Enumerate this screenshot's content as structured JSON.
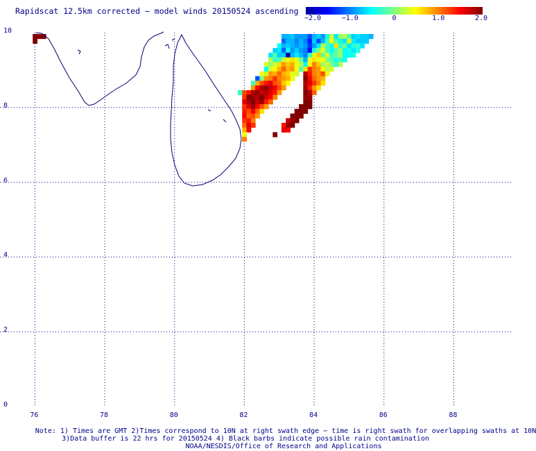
{
  "title": "Rapidscat 12.5km corrected − model winds 20150524 ascending",
  "colorbar": {
    "min": -2.0,
    "max": 2.0,
    "tick_labels": [
      "−2.0",
      "−1.0",
      "0",
      "1.0",
      "2.0"
    ],
    "tick_values": [
      -2.0,
      -1.0,
      0,
      1.0,
      2.0
    ]
  },
  "axes": {
    "x_ticks": [
      "76",
      "78",
      "80",
      "82",
      "84",
      "86",
      "88"
    ],
    "x_values": [
      76,
      78,
      80,
      82,
      84,
      86,
      88
    ],
    "y_ticks": [
      "10",
      "8",
      "6",
      "4",
      "2",
      "0"
    ],
    "y_values": [
      10,
      8,
      6,
      4,
      2,
      0
    ],
    "lon_range": [
      75.0,
      89.7
    ],
    "lat_range": [
      0,
      10
    ],
    "grid": true
  },
  "notes": {
    "line1": "Note: 1) Times are GMT 2)Times correspond to 10N at right swath edge − time is right swath for overlapping swaths at 10N",
    "line2": "3)Data buffer is 22 hrs for 20150524 4) Black barbs indicate possible rain contamination",
    "line3": "NOAA/NESDIS/Office of Research and Applications"
  },
  "chart_data": {
    "type": "heatmap",
    "title": "Rapidscat 12.5km corrected − model winds 20150524 ascending",
    "xlabel": "",
    "ylabel": "",
    "xlim": [
      75.0,
      89.7
    ],
    "ylim": [
      0,
      10
    ],
    "cell_size_deg": 0.125,
    "legend": "top-right colorbar",
    "cells": [
      [
        76.0,
        9.9,
        2.0
      ],
      [
        76.125,
        9.9,
        2.0
      ],
      [
        76.25,
        9.9,
        2.0
      ],
      [
        76.0,
        9.775,
        2.0
      ],
      [
        83.125,
        9.9,
        -0.8
      ],
      [
        83.25,
        9.9,
        -0.8
      ],
      [
        83.375,
        9.9,
        -0.7
      ],
      [
        83.5,
        9.9,
        -0.9
      ],
      [
        83.625,
        9.9,
        -0.9
      ],
      [
        83.75,
        9.9,
        -0.9
      ],
      [
        83.875,
        9.9,
        -1.2
      ],
      [
        84.0,
        9.9,
        -0.8
      ],
      [
        84.125,
        9.9,
        -0.7
      ],
      [
        84.25,
        9.9,
        -0.9
      ],
      [
        84.375,
        9.9,
        -0.4
      ],
      [
        84.5,
        9.9,
        0.3
      ],
      [
        84.625,
        9.9,
        -0.6
      ],
      [
        84.75,
        9.9,
        0.1
      ],
      [
        84.875,
        9.9,
        0.2
      ],
      [
        85.0,
        9.9,
        -0.2
      ],
      [
        85.125,
        9.9,
        -0.7
      ],
      [
        85.25,
        9.9,
        -0.6
      ],
      [
        85.375,
        9.9,
        -0.7
      ],
      [
        85.5,
        9.9,
        -0.7
      ],
      [
        85.625,
        9.9,
        -0.8
      ],
      [
        83.125,
        9.775,
        -1.1
      ],
      [
        83.25,
        9.775,
        -0.8
      ],
      [
        83.375,
        9.775,
        -0.8
      ],
      [
        83.5,
        9.775,
        -1.0
      ],
      [
        83.625,
        9.775,
        -0.8
      ],
      [
        83.75,
        9.775,
        -1.0
      ],
      [
        83.875,
        9.775,
        -1.4
      ],
      [
        84.0,
        9.775,
        -0.7
      ],
      [
        84.125,
        9.775,
        -1.2
      ],
      [
        84.25,
        9.775,
        -0.8
      ],
      [
        84.375,
        9.775,
        -0.3
      ],
      [
        84.5,
        9.775,
        0.5
      ],
      [
        84.625,
        9.775,
        -0.2
      ],
      [
        84.75,
        9.775,
        -0.4
      ],
      [
        84.875,
        9.775,
        -0.6
      ],
      [
        85.0,
        9.775,
        0.4
      ],
      [
        85.125,
        9.775,
        -0.6
      ],
      [
        85.25,
        9.775,
        -0.7
      ],
      [
        85.375,
        9.775,
        -0.7
      ],
      [
        85.5,
        9.775,
        -0.7
      ],
      [
        83.0,
        9.65,
        -0.5
      ],
      [
        83.125,
        9.65,
        -0.8
      ],
      [
        83.25,
        9.65,
        -0.7
      ],
      [
        83.375,
        9.65,
        -0.8
      ],
      [
        83.5,
        9.65,
        -0.9
      ],
      [
        83.625,
        9.65,
        -0.8
      ],
      [
        83.75,
        9.65,
        -0.9
      ],
      [
        83.875,
        9.65,
        -1.3
      ],
      [
        84.0,
        9.65,
        -0.9
      ],
      [
        84.125,
        9.65,
        -0.6
      ],
      [
        84.25,
        9.65,
        0.2
      ],
      [
        84.375,
        9.65,
        -0.2
      ],
      [
        84.5,
        9.65,
        -0.5
      ],
      [
        84.625,
        9.65,
        0.6
      ],
      [
        84.75,
        9.65,
        -0.3
      ],
      [
        84.875,
        9.65,
        -0.1
      ],
      [
        85.0,
        9.65,
        -0.6
      ],
      [
        85.125,
        9.65,
        -0.4
      ],
      [
        85.25,
        9.65,
        -0.3
      ],
      [
        85.375,
        9.65,
        -0.6
      ],
      [
        82.875,
        9.525,
        -0.7
      ],
      [
        83.0,
        9.525,
        -0.6
      ],
      [
        83.125,
        9.525,
        -1.1
      ],
      [
        83.25,
        9.525,
        -0.5
      ],
      [
        83.375,
        9.525,
        -0.9
      ],
      [
        83.5,
        9.525,
        -0.7
      ],
      [
        83.625,
        9.525,
        -0.9
      ],
      [
        83.75,
        9.525,
        -1.0
      ],
      [
        83.875,
        9.525,
        -1.5
      ],
      [
        84.0,
        9.525,
        -0.4
      ],
      [
        84.125,
        9.525,
        0.0
      ],
      [
        84.25,
        9.525,
        0.4
      ],
      [
        84.375,
        9.525,
        -0.2
      ],
      [
        84.5,
        9.525,
        -0.5
      ],
      [
        84.625,
        9.525,
        -0.2
      ],
      [
        84.75,
        9.525,
        0.1
      ],
      [
        84.875,
        9.525,
        -0.5
      ],
      [
        85.0,
        9.525,
        -0.4
      ],
      [
        85.125,
        9.525,
        -0.6
      ],
      [
        85.25,
        9.525,
        -0.4
      ],
      [
        82.75,
        9.4,
        -0.6
      ],
      [
        82.875,
        9.4,
        -0.2
      ],
      [
        83.0,
        9.4,
        -0.7
      ],
      [
        83.125,
        9.4,
        -0.7
      ],
      [
        83.25,
        9.4,
        -2.0
      ],
      [
        83.375,
        9.4,
        -0.8
      ],
      [
        83.5,
        9.4,
        -0.6
      ],
      [
        83.625,
        9.4,
        -0.8
      ],
      [
        83.75,
        9.4,
        -1.0
      ],
      [
        83.875,
        9.4,
        -0.3
      ],
      [
        84.0,
        9.4,
        0.4
      ],
      [
        84.125,
        9.4,
        0.7
      ],
      [
        84.25,
        9.4,
        -0.1
      ],
      [
        84.375,
        9.4,
        0.3
      ],
      [
        84.5,
        9.4,
        -0.3
      ],
      [
        84.625,
        9.4,
        -0.1
      ],
      [
        84.75,
        9.4,
        0.1
      ],
      [
        84.875,
        9.4,
        -0.5
      ],
      [
        85.0,
        9.4,
        -0.5
      ],
      [
        85.125,
        9.4,
        -0.4
      ],
      [
        82.75,
        9.275,
        0.2
      ],
      [
        82.875,
        9.275,
        -0.3
      ],
      [
        83.0,
        9.275,
        -0.2
      ],
      [
        83.125,
        9.275,
        0.3
      ],
      [
        83.25,
        9.275,
        0.4
      ],
      [
        83.375,
        9.275,
        0.6
      ],
      [
        83.5,
        9.275,
        0.4
      ],
      [
        83.625,
        9.275,
        -0.1
      ],
      [
        83.75,
        9.275,
        -0.8
      ],
      [
        83.875,
        9.275,
        0.4
      ],
      [
        84.0,
        9.275,
        0.6
      ],
      [
        84.125,
        9.275,
        0.4
      ],
      [
        84.25,
        9.275,
        0.5
      ],
      [
        84.375,
        9.275,
        0.0
      ],
      [
        84.5,
        9.275,
        -0.2
      ],
      [
        84.625,
        9.275,
        -0.4
      ],
      [
        84.75,
        9.275,
        -0.3
      ],
      [
        84.875,
        9.275,
        -0.4
      ],
      [
        82.625,
        9.15,
        0.3
      ],
      [
        82.75,
        9.15,
        0.1
      ],
      [
        82.875,
        9.15,
        0.3
      ],
      [
        83.0,
        9.15,
        0.6
      ],
      [
        83.125,
        9.15,
        0.9
      ],
      [
        83.25,
        9.15,
        0.7
      ],
      [
        83.375,
        9.15,
        0.8
      ],
      [
        83.5,
        9.15,
        0.4
      ],
      [
        83.625,
        9.15,
        0.2
      ],
      [
        83.75,
        9.15,
        -0.5
      ],
      [
        83.875,
        9.15,
        0.5
      ],
      [
        84.0,
        9.15,
        1.0
      ],
      [
        84.125,
        9.15,
        0.7
      ],
      [
        84.25,
        9.15,
        0.1
      ],
      [
        84.375,
        9.15,
        0.3
      ],
      [
        84.5,
        9.15,
        0.0
      ],
      [
        84.625,
        9.15,
        -0.3
      ],
      [
        84.75,
        9.15,
        0.2
      ],
      [
        82.625,
        9.025,
        -0.5
      ],
      [
        82.75,
        9.025,
        0.3
      ],
      [
        82.875,
        9.025,
        0.5
      ],
      [
        83.0,
        9.025,
        0.8
      ],
      [
        83.125,
        9.025,
        1.1
      ],
      [
        83.25,
        9.025,
        0.8
      ],
      [
        83.375,
        9.025,
        0.9
      ],
      [
        83.5,
        9.025,
        0.5
      ],
      [
        83.625,
        9.025,
        -0.2
      ],
      [
        83.75,
        9.025,
        0.6
      ],
      [
        83.875,
        9.025,
        1.3
      ],
      [
        84.0,
        9.025,
        1.0
      ],
      [
        84.125,
        9.025,
        0.9
      ],
      [
        84.25,
        9.025,
        0.5
      ],
      [
        84.375,
        9.025,
        0.2
      ],
      [
        84.5,
        9.025,
        0.3
      ],
      [
        82.5,
        8.9,
        0.4
      ],
      [
        82.625,
        8.9,
        0.3
      ],
      [
        82.75,
        8.9,
        0.9
      ],
      [
        82.875,
        8.9,
        0.8
      ],
      [
        83.0,
        8.9,
        1.1
      ],
      [
        83.125,
        8.9,
        0.8
      ],
      [
        83.25,
        8.9,
        0.7
      ],
      [
        83.375,
        8.9,
        0.4
      ],
      [
        83.5,
        8.9,
        0.3
      ],
      [
        83.75,
        8.9,
        1.8
      ],
      [
        83.875,
        8.9,
        1.4
      ],
      [
        84.0,
        8.9,
        1.0
      ],
      [
        84.125,
        8.9,
        0.9
      ],
      [
        84.25,
        8.9,
        1.2
      ],
      [
        84.375,
        8.9,
        0.4
      ],
      [
        82.375,
        8.775,
        -1.2
      ],
      [
        82.5,
        8.775,
        0.0
      ],
      [
        82.625,
        8.775,
        0.9
      ],
      [
        82.75,
        8.775,
        1.0
      ],
      [
        82.875,
        8.775,
        1.3
      ],
      [
        83.0,
        8.775,
        1.0
      ],
      [
        83.125,
        8.775,
        0.9
      ],
      [
        83.25,
        8.775,
        0.8
      ],
      [
        83.375,
        8.775,
        0.4
      ],
      [
        83.75,
        8.775,
        2.0
      ],
      [
        83.875,
        8.775,
        1.5
      ],
      [
        84.0,
        8.775,
        1.1
      ],
      [
        84.125,
        8.775,
        0.9
      ],
      [
        84.25,
        8.775,
        0.8
      ],
      [
        82.25,
        8.65,
        -0.3
      ],
      [
        82.375,
        8.65,
        0.8
      ],
      [
        82.5,
        8.65,
        1.2
      ],
      [
        82.625,
        8.65,
        1.4
      ],
      [
        82.75,
        8.65,
        1.6
      ],
      [
        82.875,
        8.65,
        1.2
      ],
      [
        83.0,
        8.65,
        1.1
      ],
      [
        83.125,
        8.65,
        0.7
      ],
      [
        83.25,
        8.65,
        0.5
      ],
      [
        83.75,
        8.65,
        1.8
      ],
      [
        83.875,
        8.65,
        1.6
      ],
      [
        84.0,
        8.65,
        1.3
      ],
      [
        84.125,
        8.65,
        1.0
      ],
      [
        84.25,
        8.65,
        0.6
      ],
      [
        82.25,
        8.525,
        0.9
      ],
      [
        82.375,
        8.525,
        1.5
      ],
      [
        82.5,
        8.525,
        1.8
      ],
      [
        82.625,
        8.525,
        1.9
      ],
      [
        82.75,
        8.525,
        1.7
      ],
      [
        82.875,
        8.525,
        1.5
      ],
      [
        83.0,
        8.525,
        1.2
      ],
      [
        83.125,
        8.525,
        0.9
      ],
      [
        83.75,
        8.525,
        1.9
      ],
      [
        83.875,
        8.525,
        1.4
      ],
      [
        84.0,
        8.525,
        0.9
      ],
      [
        84.125,
        8.525,
        0.6
      ],
      [
        81.875,
        8.4,
        -0.3
      ],
      [
        82.0,
        8.4,
        1.2
      ],
      [
        82.125,
        8.4,
        1.4
      ],
      [
        82.25,
        8.4,
        1.8
      ],
      [
        82.375,
        8.4,
        1.9
      ],
      [
        82.5,
        8.4,
        1.7
      ],
      [
        82.625,
        8.4,
        1.8
      ],
      [
        82.75,
        8.4,
        1.6
      ],
      [
        82.875,
        8.4,
        1.4
      ],
      [
        83.0,
        8.4,
        0.9
      ],
      [
        83.75,
        8.4,
        2.0
      ],
      [
        83.875,
        8.4,
        1.8
      ],
      [
        84.0,
        8.4,
        1.1
      ],
      [
        82.0,
        8.275,
        1.3
      ],
      [
        82.125,
        8.275,
        2.0
      ],
      [
        82.25,
        8.275,
        1.9
      ],
      [
        82.375,
        8.275,
        1.8
      ],
      [
        82.5,
        8.275,
        2.0
      ],
      [
        82.625,
        8.275,
        1.7
      ],
      [
        82.75,
        8.275,
        1.5
      ],
      [
        82.875,
        8.275,
        1.0
      ],
      [
        83.75,
        8.275,
        1.9
      ],
      [
        83.875,
        8.275,
        1.9
      ],
      [
        82.0,
        8.15,
        1.6
      ],
      [
        82.125,
        8.15,
        1.8
      ],
      [
        82.25,
        8.15,
        2.0
      ],
      [
        82.375,
        8.15,
        1.7
      ],
      [
        82.5,
        8.15,
        1.9
      ],
      [
        82.625,
        8.15,
        1.4
      ],
      [
        82.75,
        8.15,
        1.1
      ],
      [
        83.75,
        8.15,
        2.0
      ],
      [
        83.875,
        8.15,
        2.0
      ],
      [
        82.0,
        8.025,
        1.3
      ],
      [
        82.125,
        8.025,
        1.6
      ],
      [
        82.25,
        8.025,
        1.9
      ],
      [
        82.375,
        8.025,
        1.5
      ],
      [
        82.5,
        8.025,
        1.2
      ],
      [
        82.625,
        8.025,
        0.9
      ],
      [
        83.625,
        8.025,
        2.0
      ],
      [
        83.75,
        8.025,
        2.0
      ],
      [
        83.875,
        8.025,
        2.0
      ],
      [
        82.0,
        7.9,
        1.4
      ],
      [
        82.125,
        7.9,
        1.2
      ],
      [
        82.25,
        7.9,
        1.5
      ],
      [
        82.375,
        7.9,
        1.1
      ],
      [
        82.5,
        7.9,
        0.6
      ],
      [
        83.5,
        7.9,
        2.0
      ],
      [
        83.625,
        7.9,
        2.0
      ],
      [
        83.75,
        7.9,
        2.0
      ],
      [
        82.0,
        7.775,
        1.5
      ],
      [
        82.125,
        7.775,
        1.1
      ],
      [
        82.25,
        7.775,
        1.2
      ],
      [
        82.375,
        7.775,
        0.9
      ],
      [
        83.375,
        7.775,
        2.0
      ],
      [
        83.5,
        7.775,
        2.0
      ],
      [
        83.625,
        7.775,
        2.0
      ],
      [
        82.0,
        7.65,
        1.3
      ],
      [
        82.125,
        7.65,
        1.4
      ],
      [
        82.25,
        7.65,
        1.0
      ],
      [
        83.25,
        7.65,
        1.7
      ],
      [
        83.375,
        7.65,
        1.9
      ],
      [
        83.5,
        7.65,
        2.0
      ],
      [
        82.0,
        7.525,
        1.1
      ],
      [
        82.125,
        7.525,
        1.6
      ],
      [
        82.25,
        7.525,
        1.3
      ],
      [
        83.125,
        7.525,
        1.4
      ],
      [
        83.25,
        7.525,
        1.9
      ],
      [
        83.375,
        7.525,
        2.0
      ],
      [
        82.0,
        7.4,
        0.8
      ],
      [
        82.125,
        7.4,
        1.5
      ],
      [
        83.125,
        7.4,
        1.6
      ],
      [
        83.25,
        7.4,
        1.5
      ],
      [
        82.0,
        7.275,
        0.4
      ],
      [
        82.875,
        7.275,
        2.0
      ],
      [
        82.0,
        7.15,
        1.0
      ]
    ]
  }
}
